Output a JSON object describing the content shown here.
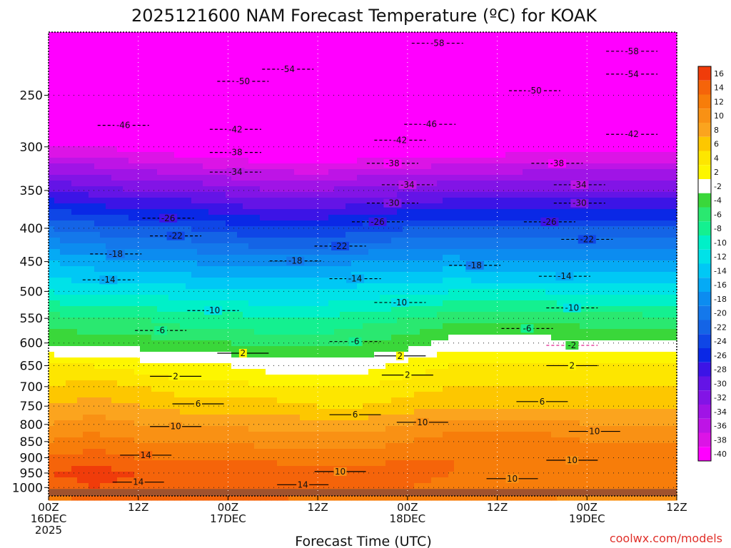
{
  "chart_data": {
    "type": "heatmap",
    "title": "2025121600 NAM Forecast Temperature (ºC) for KOAK",
    "xlabel": "Forecast Time (UTC)",
    "ylabel": "",
    "watermark": "coolwx.com/models",
    "y_levels_hPa": [
      1000,
      950,
      900,
      850,
      800,
      750,
      700,
      650,
      600,
      550,
      500,
      450,
      400,
      350,
      300,
      250
    ],
    "y_range_hPa": [
      1030,
      200
    ],
    "y_scale": "log-pressure",
    "x_ticks": [
      {
        "hour": 0,
        "lines": [
          "00Z",
          "16DEC",
          "2025"
        ]
      },
      {
        "hour": 12,
        "lines": [
          "12Z"
        ]
      },
      {
        "hour": 24,
        "lines": [
          "00Z",
          "17DEC"
        ]
      },
      {
        "hour": 36,
        "lines": [
          "12Z"
        ]
      },
      {
        "hour": 48,
        "lines": [
          "00Z",
          "18DEC"
        ]
      },
      {
        "hour": 60,
        "lines": [
          "12Z"
        ]
      },
      {
        "hour": 72,
        "lines": [
          "00Z",
          "19DEC"
        ]
      },
      {
        "hour": 84,
        "lines": [
          "12Z"
        ]
      }
    ],
    "x_range_hours": [
      0,
      84
    ],
    "grid": true,
    "colorbar": {
      "placement": "right",
      "labels": [
        "16",
        "14",
        "12",
        "10",
        "8",
        "6",
        "4",
        "2",
        "-2",
        "-4",
        "-6",
        "-8",
        "-10",
        "-12",
        "-14",
        "-16",
        "-18",
        "-20",
        "-22",
        "-24",
        "-26",
        "-28",
        "-30",
        "-32",
        "-34",
        "-36",
        "-38",
        "-40"
      ],
      "colors": [
        "#f03c0a",
        "#f5640a",
        "#f77d0a",
        "#f99114",
        "#fba41e",
        "#fdc700",
        "#fde600",
        "#fdf600",
        "#ffffff",
        "#3ad73a",
        "#2ae870",
        "#14f090",
        "#00f0c8",
        "#00e2e8",
        "#00c8f5",
        "#05aaf5",
        "#0c8cf0",
        "#1478eb",
        "#1464e6",
        "#0f46e6",
        "#0a28e6",
        "#3c14e6",
        "#6414e6",
        "#8214e6",
        "#a014e6",
        "#be14e6",
        "#dc14e6",
        "#ff00ff"
      ]
    },
    "profiles": [
      {
        "hour": 0,
        "values": [
          12,
          14,
          12,
          10,
          8,
          6,
          4,
          2,
          -2,
          -5,
          -10,
          -14,
          -20,
          -28,
          -38,
          -47
        ]
      },
      {
        "hour": 6,
        "values": [
          14,
          15,
          13,
          11,
          9,
          7,
          5,
          2,
          -3,
          -6,
          -11,
          -15,
          -21,
          -29,
          -38,
          -47
        ]
      },
      {
        "hour": 12,
        "values": [
          13,
          14,
          12,
          10,
          8,
          6,
          4,
          1,
          -3,
          -6,
          -11,
          -16,
          -22,
          -30,
          -39,
          -48
        ]
      },
      {
        "hour": 18,
        "values": [
          13,
          14,
          12,
          10,
          8,
          5,
          3,
          0,
          -4,
          -7,
          -11,
          -16,
          -22,
          -30,
          -40,
          -48
        ]
      },
      {
        "hour": 24,
        "values": [
          13,
          14,
          12,
          10,
          8,
          5,
          3,
          0,
          -4,
          -7,
          -12,
          -17,
          -23,
          -31,
          -41,
          -49
        ]
      },
      {
        "hour": 30,
        "values": [
          13,
          14,
          11,
          9,
          7,
          5,
          2,
          -1,
          -5,
          -8,
          -12,
          -17,
          -24,
          -32,
          -41,
          -49
        ]
      },
      {
        "hour": 36,
        "values": [
          12,
          13,
          11,
          9,
          7,
          4,
          2,
          -1,
          -5,
          -8,
          -12,
          -17,
          -24,
          -32,
          -42,
          -50
        ]
      },
      {
        "hour": 42,
        "values": [
          12,
          13,
          11,
          9,
          7,
          4,
          2,
          -1,
          -4,
          -7,
          -11,
          -16,
          -23,
          -31,
          -41,
          -49
        ]
      },
      {
        "hour": 48,
        "values": [
          12,
          13,
          12,
          10,
          8,
          5,
          3,
          1,
          -3,
          -6,
          -11,
          -16,
          -22,
          -31,
          -41,
          -49
        ]
      },
      {
        "hour": 54,
        "values": [
          11,
          12,
          12,
          11,
          9,
          6,
          4,
          2,
          -1,
          -5,
          -10,
          -15,
          -22,
          -30,
          -40,
          -49
        ]
      },
      {
        "hour": 60,
        "values": [
          11,
          12,
          12,
          11,
          9,
          6,
          4,
          2,
          -1,
          -5,
          -10,
          -16,
          -22,
          -30,
          -40,
          -49
        ]
      },
      {
        "hour": 66,
        "values": [
          11,
          12,
          12,
          11,
          9,
          6,
          4,
          2,
          -1,
          -5,
          -10,
          -16,
          -22,
          -30,
          -39,
          -49
        ]
      },
      {
        "hour": 72,
        "values": [
          10,
          11,
          11,
          10,
          8,
          6,
          4,
          2,
          -2,
          -5,
          -11,
          -16,
          -22,
          -30,
          -39,
          -48
        ]
      },
      {
        "hour": 78,
        "values": [
          10,
          11,
          11,
          10,
          8,
          6,
          4,
          2,
          -2,
          -5,
          -11,
          -16,
          -22,
          -30,
          -39,
          -48
        ]
      },
      {
        "hour": 84,
        "values": [
          10,
          11,
          11,
          10,
          8,
          6,
          4,
          2,
          -2,
          -6,
          -11,
          -16,
          -22,
          -30,
          -39,
          -48
        ]
      }
    ],
    "contour_labels": [
      {
        "hour": 32,
        "hPa": 228,
        "text": "-54"
      },
      {
        "hour": 52,
        "hPa": 208,
        "text": "-58"
      },
      {
        "hour": 78,
        "hPa": 214,
        "text": "-58"
      },
      {
        "hour": 78,
        "hPa": 232,
        "text": "-54"
      },
      {
        "hour": 26,
        "hPa": 238,
        "text": "-50"
      },
      {
        "hour": 65,
        "hPa": 246,
        "text": "-50"
      },
      {
        "hour": 10,
        "hPa": 278,
        "text": "-46"
      },
      {
        "hour": 51,
        "hPa": 277,
        "text": "-46"
      },
      {
        "hour": 25,
        "hPa": 282,
        "text": "-42"
      },
      {
        "hour": 47,
        "hPa": 293,
        "text": "-42"
      },
      {
        "hour": 78,
        "hPa": 287,
        "text": "-42"
      },
      {
        "hour": 25,
        "hPa": 306,
        "text": "-38"
      },
      {
        "hour": 46,
        "hPa": 318,
        "text": "-38"
      },
      {
        "hour": 68,
        "hPa": 318,
        "text": "-38"
      },
      {
        "hour": 25,
        "hPa": 328,
        "text": "-34"
      },
      {
        "hour": 48,
        "hPa": 343,
        "text": "-34"
      },
      {
        "hour": 71,
        "hPa": 343,
        "text": "-34"
      },
      {
        "hour": 46,
        "hPa": 366,
        "text": "-30"
      },
      {
        "hour": 71,
        "hPa": 366,
        "text": "-30"
      },
      {
        "hour": 16,
        "hPa": 386,
        "text": "-26"
      },
      {
        "hour": 44,
        "hPa": 391,
        "text": "-26"
      },
      {
        "hour": 67,
        "hPa": 391,
        "text": "-26"
      },
      {
        "hour": 17,
        "hPa": 411,
        "text": "-22"
      },
      {
        "hour": 39,
        "hPa": 426,
        "text": "-22"
      },
      {
        "hour": 72,
        "hPa": 416,
        "text": "-22"
      },
      {
        "hour": 9,
        "hPa": 438,
        "text": "-18"
      },
      {
        "hour": 33,
        "hPa": 449,
        "text": "-18"
      },
      {
        "hour": 57,
        "hPa": 456,
        "text": "-18"
      },
      {
        "hour": 8,
        "hPa": 480,
        "text": "-14"
      },
      {
        "hour": 41,
        "hPa": 478,
        "text": "-14"
      },
      {
        "hour": 69,
        "hPa": 474,
        "text": "-14"
      },
      {
        "hour": 22,
        "hPa": 535,
        "text": "-10"
      },
      {
        "hour": 47,
        "hPa": 520,
        "text": "-10"
      },
      {
        "hour": 70,
        "hPa": 530,
        "text": "-10"
      },
      {
        "hour": 15,
        "hPa": 574,
        "text": "-6"
      },
      {
        "hour": 41,
        "hPa": 597,
        "text": "-6"
      },
      {
        "hour": 64,
        "hPa": 570,
        "text": "-6"
      },
      {
        "hour": 26,
        "hPa": 622,
        "text": "2"
      },
      {
        "hour": 47,
        "hPa": 628,
        "text": "2"
      },
      {
        "hour": 70,
        "hPa": 605,
        "text": "-2"
      },
      {
        "hour": 17,
        "hPa": 675,
        "text": "2"
      },
      {
        "hour": 48,
        "hPa": 672,
        "text": "2"
      },
      {
        "hour": 70,
        "hPa": 650,
        "text": "2"
      },
      {
        "hour": 20,
        "hPa": 744,
        "text": "6"
      },
      {
        "hour": 41,
        "hPa": 773,
        "text": "6"
      },
      {
        "hour": 66,
        "hPa": 738,
        "text": "6"
      },
      {
        "hour": 17,
        "hPa": 806,
        "text": "10"
      },
      {
        "hour": 50,
        "hPa": 794,
        "text": "10"
      },
      {
        "hour": 73,
        "hPa": 820,
        "text": "10"
      },
      {
        "hour": 70,
        "hPa": 908,
        "text": "10"
      },
      {
        "hour": 39,
        "hPa": 945,
        "text": "10"
      },
      {
        "hour": 62,
        "hPa": 969,
        "text": "10"
      },
      {
        "hour": 13,
        "hPa": 892,
        "text": "14"
      },
      {
        "hour": 12,
        "hPa": 981,
        "text": "14"
      },
      {
        "hour": 34,
        "hPa": 990,
        "text": "14"
      }
    ]
  }
}
